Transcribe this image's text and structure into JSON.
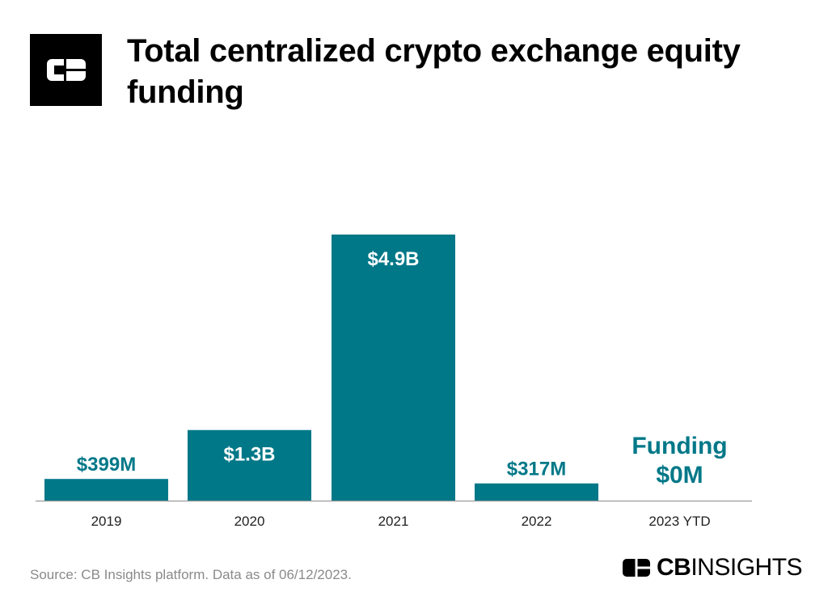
{
  "header": {
    "title": "Total centralized crypto exchange equity funding",
    "logo_icon": "cb-insights-logo-icon"
  },
  "chart_data": {
    "type": "bar",
    "title": "Total centralized crypto exchange equity funding",
    "categories": [
      "2019",
      "2020",
      "2021",
      "2022",
      "2023 YTD"
    ],
    "values": [
      399,
      1300,
      4900,
      317,
      0
    ],
    "unit": "$M",
    "data_labels": [
      "$399M",
      "$1.3B",
      "$4.9B",
      "$317M",
      "Funding\n$0M"
    ],
    "xlabel": "",
    "ylabel": "",
    "grid": false,
    "legend": "none",
    "bar_color": "#007888",
    "text_color": "#007888"
  },
  "footer": {
    "source": "Source: CB Insights platform. Data as of 06/12/2023.",
    "brand_bold": "CB",
    "brand_regular": "INSIGHTS"
  }
}
